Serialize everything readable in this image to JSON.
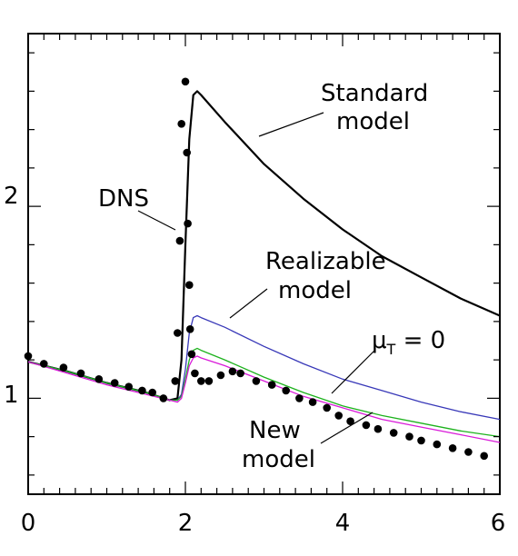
{
  "chart_data": {
    "type": "line",
    "title": "",
    "xlabel": "",
    "ylabel": "",
    "xlim": [
      0,
      6
    ],
    "ylim": [
      0.5,
      2.9
    ],
    "x_ticks": [
      0,
      2,
      4,
      6
    ],
    "y_ticks": [
      1,
      2
    ],
    "x_tick_labels": [
      "0",
      "2",
      "4",
      "6"
    ],
    "y_tick_labels": [
      "1",
      "2"
    ],
    "grid": false,
    "legend": "none",
    "series": [
      {
        "key": "dns",
        "kind": "points",
        "color": "#000000",
        "x": [
          0.0,
          0.2,
          0.45,
          0.67,
          0.9,
          1.1,
          1.28,
          1.45,
          1.58,
          1.72,
          1.87,
          1.9,
          1.93,
          1.95,
          2.0,
          2.02,
          2.03,
          2.05,
          2.06,
          2.08,
          2.12,
          2.2,
          2.3,
          2.45,
          2.6,
          2.7,
          2.9,
          3.1,
          3.28,
          3.45,
          3.62,
          3.8,
          3.95,
          4.1,
          4.3,
          4.45,
          4.65,
          4.85,
          5.0,
          5.2,
          5.4,
          5.6,
          5.8
        ],
        "y": [
          1.22,
          1.18,
          1.16,
          1.13,
          1.1,
          1.08,
          1.06,
          1.04,
          1.03,
          1.0,
          1.09,
          1.34,
          1.82,
          2.43,
          2.65,
          2.28,
          1.91,
          1.59,
          1.36,
          1.23,
          1.13,
          1.09,
          1.09,
          1.12,
          1.14,
          1.13,
          1.09,
          1.07,
          1.04,
          1.0,
          0.98,
          0.95,
          0.91,
          0.88,
          0.86,
          0.84,
          0.82,
          0.8,
          0.78,
          0.76,
          0.74,
          0.72,
          0.7
        ]
      },
      {
        "key": "standard",
        "kind": "line",
        "color": "#000000",
        "x": [
          0.0,
          0.5,
          1.0,
          1.5,
          1.8,
          1.9,
          1.95,
          2.0,
          2.05,
          2.1,
          2.15,
          2.2,
          2.5,
          3.0,
          3.5,
          4.0,
          4.5,
          5.0,
          5.5,
          6.0
        ],
        "y": [
          1.19,
          1.14,
          1.08,
          1.03,
          0.99,
          1.0,
          1.2,
          1.8,
          2.35,
          2.58,
          2.6,
          2.58,
          2.44,
          2.22,
          2.04,
          1.88,
          1.74,
          1.63,
          1.52,
          1.43
        ]
      },
      {
        "key": "realizable",
        "kind": "line",
        "color": "#3838b8",
        "x": [
          0.0,
          0.5,
          1.0,
          1.5,
          1.8,
          1.9,
          1.95,
          2.0,
          2.05,
          2.1,
          2.15,
          2.2,
          2.5,
          3.0,
          3.5,
          4.0,
          4.5,
          5.0,
          5.5,
          6.0
        ],
        "y": [
          1.19,
          1.14,
          1.08,
          1.03,
          0.99,
          0.99,
          1.02,
          1.15,
          1.34,
          1.42,
          1.43,
          1.42,
          1.37,
          1.27,
          1.18,
          1.1,
          1.04,
          0.98,
          0.93,
          0.89
        ]
      },
      {
        "key": "mu_t_zero",
        "kind": "line",
        "color": "#1db21d",
        "x": [
          0.0,
          0.5,
          1.0,
          1.5,
          1.8,
          1.9,
          1.95,
          2.0,
          2.05,
          2.1,
          2.15,
          2.2,
          2.5,
          3.0,
          3.5,
          4.0,
          4.5,
          5.0,
          5.5,
          6.0
        ],
        "y": [
          1.19,
          1.14,
          1.08,
          1.03,
          0.99,
          0.99,
          1.01,
          1.1,
          1.2,
          1.25,
          1.26,
          1.25,
          1.2,
          1.11,
          1.03,
          0.96,
          0.91,
          0.87,
          0.83,
          0.8
        ]
      },
      {
        "key": "new",
        "kind": "line",
        "color": "#d91ad9",
        "x": [
          0.0,
          0.5,
          1.0,
          1.5,
          1.8,
          1.9,
          1.95,
          2.0,
          2.05,
          2.1,
          2.15,
          2.2,
          2.5,
          3.0,
          3.5,
          4.0,
          4.5,
          5.0,
          5.5,
          6.0
        ],
        "y": [
          1.19,
          1.13,
          1.07,
          1.02,
          0.99,
          0.98,
          1.0,
          1.08,
          1.17,
          1.21,
          1.22,
          1.21,
          1.17,
          1.09,
          1.01,
          0.95,
          0.89,
          0.85,
          0.81,
          0.77
        ]
      }
    ],
    "annotations": [
      {
        "key": "dns",
        "lines": [
          "DNS"
        ],
        "sub": "",
        "tail": ""
      },
      {
        "key": "standard",
        "lines": [
          "Standard",
          "model"
        ],
        "sub": "",
        "tail": ""
      },
      {
        "key": "realizable",
        "lines": [
          "Realizable",
          "model"
        ],
        "sub": "",
        "tail": ""
      },
      {
        "key": "mu_t_zero",
        "lines": [
          "μ"
        ],
        "sub": "T",
        "tail": " = 0"
      },
      {
        "key": "new",
        "lines": [
          "New",
          "model"
        ],
        "sub": "",
        "tail": ""
      }
    ]
  }
}
